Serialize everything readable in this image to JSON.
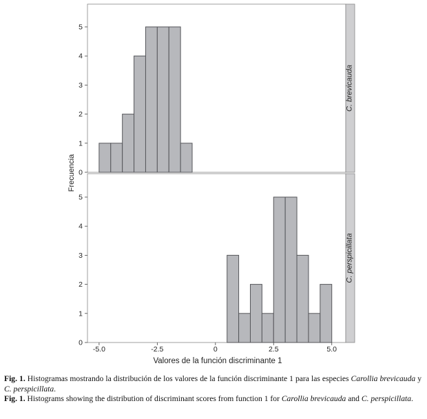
{
  "chart_data": [
    {
      "type": "bar",
      "panel_label": "C. brevicauda",
      "ylabel": "Frecuencia",
      "xlabel": "Valores de la función discriminante 1",
      "bin_width": 0.5,
      "bins": [
        {
          "x0": -5.0,
          "x1": -4.5,
          "count": 1
        },
        {
          "x0": -4.5,
          "x1": -4.0,
          "count": 1
        },
        {
          "x0": -4.0,
          "x1": -3.5,
          "count": 2
        },
        {
          "x0": -3.5,
          "x1": -3.0,
          "count": 4
        },
        {
          "x0": -3.0,
          "x1": -2.5,
          "count": 5
        },
        {
          "x0": -2.5,
          "x1": -2.0,
          "count": 5
        },
        {
          "x0": -2.0,
          "x1": -1.5,
          "count": 5
        },
        {
          "x0": -1.5,
          "x1": -1.0,
          "count": 1
        }
      ],
      "xlim": [
        -5.5,
        5.6
      ],
      "ylim": [
        0,
        5.5
      ],
      "yticks": [
        "0",
        "1",
        "2",
        "3",
        "4",
        "5"
      ]
    },
    {
      "type": "bar",
      "panel_label": "C. perspicillata",
      "ylabel": "Frecuencia",
      "xlabel": "Valores de la función discriminante 1",
      "bin_width": 0.5,
      "bins": [
        {
          "x0": 0.5,
          "x1": 1.0,
          "count": 3
        },
        {
          "x0": 1.0,
          "x1": 1.5,
          "count": 1
        },
        {
          "x0": 1.5,
          "x1": 2.0,
          "count": 2
        },
        {
          "x0": 2.0,
          "x1": 2.5,
          "count": 1
        },
        {
          "x0": 2.5,
          "x1": 3.0,
          "count": 5
        },
        {
          "x0": 3.0,
          "x1": 3.5,
          "count": 5
        },
        {
          "x0": 3.5,
          "x1": 4.0,
          "count": 3
        },
        {
          "x0": 4.0,
          "x1": 4.5,
          "count": 1
        },
        {
          "x0": 4.5,
          "x1": 5.0,
          "count": 2
        }
      ],
      "xlim": [
        -5.5,
        5.6
      ],
      "ylim": [
        0,
        5.5
      ],
      "yticks": [
        "0",
        "1",
        "2",
        "3",
        "4",
        "5"
      ],
      "xticks": [
        "-5.0",
        "-2.5",
        "0",
        "2.5",
        "5.0"
      ]
    }
  ],
  "colors": {
    "bar_fill": "#b7b8bc",
    "bar_stroke": "#55565a",
    "strip_fill": "#cfcfd1",
    "axis": "#888888"
  },
  "axis": {
    "ylabel": "Frecuencia",
    "xlabel": "Valores de la función discriminante 1"
  },
  "caption_es": {
    "label": "Fig. 1.",
    "text_1": " Histogramas mostrando la distribución de los valores de la función discriminante 1 para las especies ",
    "species_1": "Carollia brevicauda",
    "text_2": " y ",
    "species_2": "C. perspicillata",
    "text_3": "."
  },
  "caption_en": {
    "label": "Fig. 1.",
    "text_1": " Histograms showing the distribution of discriminant scores from function 1 for ",
    "species_1": "Carollia brevicauda",
    "text_2": " and ",
    "species_2": "C. perspicillata",
    "text_3": "."
  }
}
